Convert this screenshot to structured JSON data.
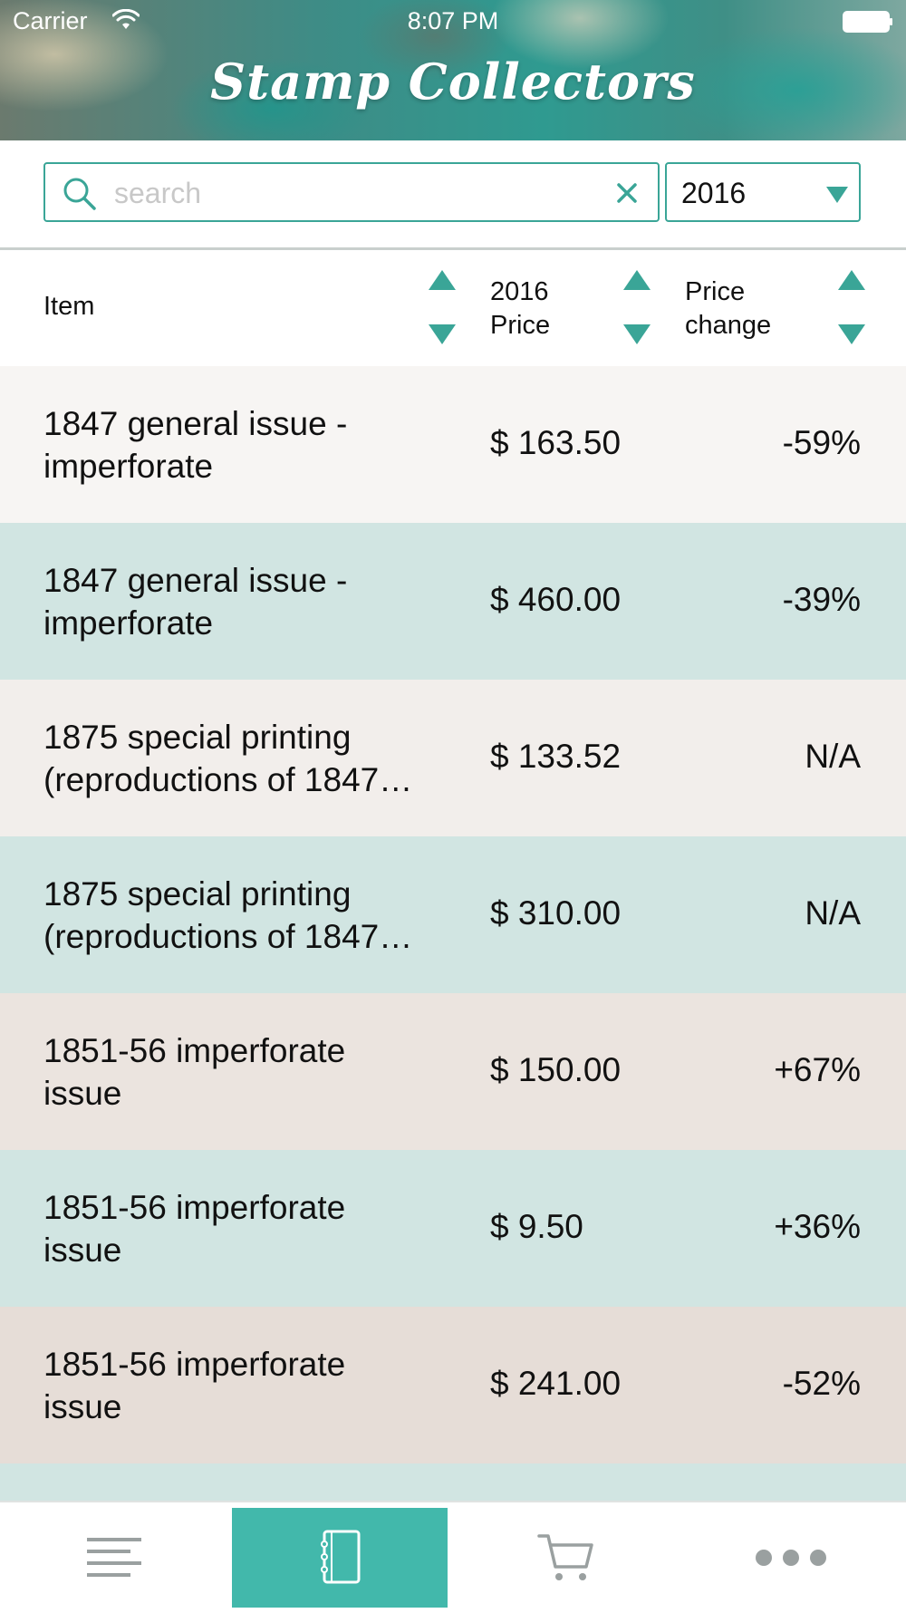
{
  "status_bar": {
    "carrier": "Carrier",
    "time": "8:07 PM"
  },
  "header": {
    "title": "Stamp Collectors"
  },
  "search": {
    "placeholder": "search",
    "value": ""
  },
  "year_select": {
    "selected": "2016"
  },
  "columns": {
    "item": "Item",
    "price_line1": "2016",
    "price_line2": "Price",
    "change_line1": "Price",
    "change_line2": "change"
  },
  "rows": [
    {
      "item_line1": "1847 general issue -",
      "item_line2": "imperforate",
      "price": "$ 163.50",
      "change": "-59%",
      "bg": "#f7f5f3"
    },
    {
      "item_line1": "1847 general issue -",
      "item_line2": "imperforate",
      "price": "$ 460.00",
      "change": "-39%",
      "bg": "#d1e5e2"
    },
    {
      "item_line1": "1875 special printing",
      "item_line2": "(reproductions of 1847…",
      "price": "$ 133.52",
      "change": "N/A",
      "bg": "#f2eeeb"
    },
    {
      "item_line1": "1875 special printing",
      "item_line2": "(reproductions of 1847…",
      "price": "$ 310.00",
      "change": "N/A",
      "bg": "#d1e5e2"
    },
    {
      "item_line1": "1851-56 imperforate",
      "item_line2": "issue",
      "price": "$ 150.00",
      "change": "+67%",
      "bg": "#ebe4df"
    },
    {
      "item_line1": "1851-56 imperforate",
      "item_line2": "issue",
      "price": "$ 9.50",
      "change": "+36%",
      "bg": "#d1e5e2"
    },
    {
      "item_line1": "1851-56 imperforate",
      "item_line2": "issue",
      "price": "$ 241.00",
      "change": "-52%",
      "bg": "#e6ddd7"
    },
    {
      "item_line1": "",
      "item_line2": "",
      "price": "",
      "change": "",
      "bg": "#d1e5e2"
    }
  ],
  "tabbar": {
    "tabs": [
      {
        "icon": "list-icon",
        "active": false
      },
      {
        "icon": "notebook-icon",
        "active": true
      },
      {
        "icon": "cart-icon",
        "active": false
      },
      {
        "icon": "more-icon",
        "active": false
      }
    ]
  },
  "colors": {
    "accent": "#3aa597",
    "tab_active": "#42b8ab",
    "row_teal": "#d1e5e2"
  }
}
